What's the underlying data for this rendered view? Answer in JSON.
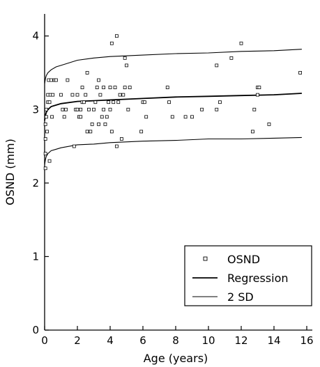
{
  "chart_data": {
    "type": "scatter",
    "xlabel": "Age (years)",
    "ylabel": "OSND (mm)",
    "xlim": [
      0,
      16
    ],
    "ylim": [
      0,
      4.3
    ],
    "x_ticks": [
      0,
      2,
      4,
      6,
      8,
      10,
      12,
      14,
      16
    ],
    "y_ticks": [
      0,
      1,
      2,
      3,
      4
    ],
    "grid": false,
    "legend": {
      "placement": "bottom-right",
      "entries": [
        {
          "label": "OSND",
          "marker": "open-square"
        },
        {
          "label": "Regression",
          "marker": "line"
        },
        {
          "label": "2 SD",
          "marker": "line"
        }
      ]
    },
    "series": [
      {
        "name": "OSND",
        "kind": "points",
        "points": [
          [
            0.05,
            2.2
          ],
          [
            0.05,
            2.4
          ],
          [
            0.05,
            2.6
          ],
          [
            0.05,
            2.8
          ],
          [
            0.1,
            2.9
          ],
          [
            0.1,
            3.0
          ],
          [
            0.15,
            2.7
          ],
          [
            0.2,
            3.1
          ],
          [
            0.2,
            3.2
          ],
          [
            0.25,
            3.4
          ],
          [
            0.3,
            2.3
          ],
          [
            0.3,
            3.1
          ],
          [
            0.35,
            3.2
          ],
          [
            0.4,
            3.4
          ],
          [
            0.45,
            2.9
          ],
          [
            0.5,
            3.2
          ],
          [
            0.6,
            3.4
          ],
          [
            0.7,
            3.4
          ],
          [
            1.0,
            3.2
          ],
          [
            1.1,
            3.0
          ],
          [
            1.2,
            2.9
          ],
          [
            1.3,
            3.0
          ],
          [
            1.4,
            3.4
          ],
          [
            1.7,
            3.2
          ],
          [
            1.8,
            2.5
          ],
          [
            1.9,
            3.0
          ],
          [
            2.0,
            3.0
          ],
          [
            2.0,
            3.2
          ],
          [
            2.1,
            2.9
          ],
          [
            2.2,
            2.9
          ],
          [
            2.2,
            3.0
          ],
          [
            2.3,
            3.1
          ],
          [
            2.3,
            3.3
          ],
          [
            2.4,
            3.1
          ],
          [
            2.5,
            3.2
          ],
          [
            2.6,
            3.5
          ],
          [
            2.6,
            2.7
          ],
          [
            2.7,
            3.0
          ],
          [
            2.8,
            2.7
          ],
          [
            2.9,
            2.8
          ],
          [
            3.0,
            3.0
          ],
          [
            3.1,
            3.1
          ],
          [
            3.2,
            3.3
          ],
          [
            3.3,
            3.4
          ],
          [
            3.3,
            2.8
          ],
          [
            3.4,
            3.2
          ],
          [
            3.5,
            2.9
          ],
          [
            3.6,
            3.3
          ],
          [
            3.6,
            3.0
          ],
          [
            3.7,
            2.8
          ],
          [
            3.8,
            2.9
          ],
          [
            3.9,
            3.1
          ],
          [
            4.0,
            3.3
          ],
          [
            4.0,
            3.0
          ],
          [
            4.1,
            3.9
          ],
          [
            4.1,
            2.7
          ],
          [
            4.2,
            3.1
          ],
          [
            4.3,
            3.3
          ],
          [
            4.4,
            2.5
          ],
          [
            4.4,
            4.0
          ],
          [
            4.5,
            3.1
          ],
          [
            4.6,
            3.2
          ],
          [
            4.7,
            2.6
          ],
          [
            4.8,
            3.2
          ],
          [
            4.9,
            3.3
          ],
          [
            4.9,
            3.7
          ],
          [
            5.0,
            3.6
          ],
          [
            5.1,
            3.0
          ],
          [
            5.2,
            3.3
          ],
          [
            5.9,
            2.7
          ],
          [
            6.0,
            3.1
          ],
          [
            6.1,
            3.1
          ],
          [
            6.2,
            2.9
          ],
          [
            7.5,
            3.3
          ],
          [
            7.6,
            3.1
          ],
          [
            7.8,
            2.9
          ],
          [
            8.6,
            2.9
          ],
          [
            9.0,
            2.9
          ],
          [
            9.6,
            3.0
          ],
          [
            10.5,
            3.6
          ],
          [
            10.5,
            3.0
          ],
          [
            10.7,
            3.1
          ],
          [
            11.4,
            3.7
          ],
          [
            12.0,
            3.9
          ],
          [
            12.7,
            2.7
          ],
          [
            12.8,
            3.0
          ],
          [
            13.0,
            3.2
          ],
          [
            13.0,
            3.3
          ],
          [
            13.1,
            3.3
          ],
          [
            13.7,
            2.8
          ],
          [
            15.6,
            3.5
          ]
        ]
      },
      {
        "name": "Regression",
        "kind": "curve",
        "points": [
          [
            0.0,
            2.85
          ],
          [
            0.05,
            2.92
          ],
          [
            0.1,
            2.96
          ],
          [
            0.2,
            3.0
          ],
          [
            0.4,
            3.04
          ],
          [
            0.7,
            3.06
          ],
          [
            1.0,
            3.08
          ],
          [
            2.0,
            3.11
          ],
          [
            3.0,
            3.12
          ],
          [
            4.0,
            3.13
          ],
          [
            6.0,
            3.15
          ],
          [
            8.0,
            3.17
          ],
          [
            10.0,
            3.18
          ],
          [
            12.0,
            3.19
          ],
          [
            14.0,
            3.2
          ],
          [
            15.7,
            3.22
          ]
        ]
      },
      {
        "name": "2 SD",
        "kind": "curve",
        "points": [
          [
            0.0,
            3.35
          ],
          [
            0.05,
            3.42
          ],
          [
            0.1,
            3.46
          ],
          [
            0.2,
            3.5
          ],
          [
            0.4,
            3.54
          ],
          [
            0.7,
            3.58
          ],
          [
            1.0,
            3.6
          ],
          [
            2.0,
            3.67
          ],
          [
            3.0,
            3.7
          ],
          [
            4.0,
            3.72
          ],
          [
            6.0,
            3.74
          ],
          [
            8.0,
            3.76
          ],
          [
            10.0,
            3.77
          ],
          [
            12.0,
            3.79
          ],
          [
            14.0,
            3.8
          ],
          [
            15.7,
            3.82
          ]
        ]
      },
      {
        "name": "2 SD",
        "kind": "curve",
        "points": [
          [
            0.0,
            2.25
          ],
          [
            0.05,
            2.32
          ],
          [
            0.1,
            2.36
          ],
          [
            0.2,
            2.4
          ],
          [
            0.4,
            2.44
          ],
          [
            0.7,
            2.46
          ],
          [
            1.0,
            2.48
          ],
          [
            2.0,
            2.52
          ],
          [
            3.0,
            2.53
          ],
          [
            4.0,
            2.55
          ],
          [
            6.0,
            2.57
          ],
          [
            8.0,
            2.58
          ],
          [
            10.0,
            2.6
          ],
          [
            12.0,
            2.6
          ],
          [
            14.0,
            2.61
          ],
          [
            15.7,
            2.62
          ]
        ]
      }
    ]
  }
}
